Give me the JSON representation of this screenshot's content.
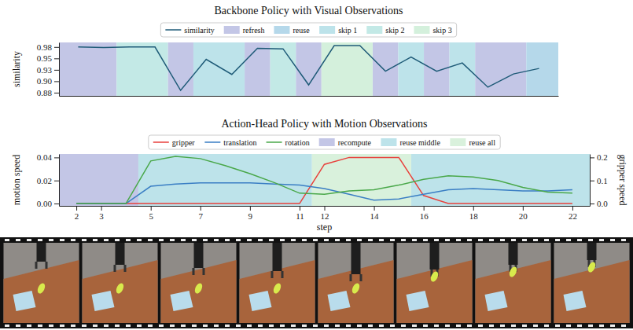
{
  "chart_data": [
    {
      "type": "line",
      "title": "Backbone Policy with Visual Observations",
      "y_label": "similarity",
      "tick_labels": "y",
      "legend": "top",
      "x": [
        0,
        1,
        2,
        3,
        4,
        5,
        6,
        7,
        8,
        9,
        10,
        11,
        12,
        13,
        14,
        15,
        16,
        17,
        18
      ],
      "xlim": [
        -0.75,
        18.75
      ],
      "ylim": [
        0.868,
        0.985
      ],
      "yticks": [
        {
          "value": 0.875,
          "label": "0.88"
        },
        {
          "value": 0.9,
          "label": "0.90"
        },
        {
          "value": 0.925,
          "label": "0.93"
        },
        0.95,
        {
          "value": 0.975,
          "label": "0.98"
        }
      ],
      "series": [
        {
          "name": "similarity",
          "color": "#1f5b78",
          "values": [
            0.975,
            0.974,
            0.975,
            0.975,
            0.88,
            0.948,
            0.915,
            0.972,
            0.971,
            0.892,
            0.978,
            0.978,
            0.922,
            0.953,
            0.922,
            0.94,
            0.887,
            0.916,
            0.928
          ]
        }
      ],
      "bands": [
        {
          "name": "refresh",
          "color": "#c3c6e6",
          "spans": [
            [
              -0.75,
              1.5
            ],
            [
              3.5,
              4.5
            ],
            [
              6.5,
              7.5
            ],
            [
              8.5,
              9.5
            ],
            [
              11.5,
              12.5
            ],
            [
              13.5,
              14.5
            ],
            [
              15.5,
              17.5
            ]
          ]
        },
        {
          "name": "reuse",
          "color": "#b5d8ea",
          "spans": [
            [
              17.5,
              18.75
            ]
          ]
        },
        {
          "name": "skip 1",
          "color": "#bde3ea",
          "spans": [
            [
              4.5,
              6.5
            ],
            [
              12.5,
              13.5
            ],
            [
              14.5,
              15.5
            ]
          ]
        },
        {
          "name": "skip 2",
          "color": "#c3e9e6",
          "spans": [
            [
              1.5,
              3.5
            ],
            [
              7.5,
              8.5
            ]
          ]
        },
        {
          "name": "skip 3",
          "color": "#d4f0dc",
          "spans": [
            [
              9.5,
              11.5
            ]
          ]
        }
      ]
    },
    {
      "type": "line",
      "title": "Action-Head Policy with Motion Observations",
      "x_label": "step",
      "y_label": "motion speed",
      "y2_label": "gripper speed",
      "legend": "top",
      "x": [
        2,
        3,
        4,
        5,
        6,
        7,
        8,
        9,
        10,
        11,
        12,
        13,
        14,
        15,
        16,
        17,
        18,
        19,
        20,
        21,
        22
      ],
      "xlim": [
        1.3,
        22.7
      ],
      "xticks": [
        2,
        3,
        5,
        7,
        9,
        11,
        12,
        14,
        16,
        18,
        20,
        22
      ],
      "ylim": [
        -0.002,
        0.043
      ],
      "yticks": [
        {
          "value": 0,
          "label": "0.00"
        },
        0.02,
        0.04
      ],
      "y2lim": [
        -0.01,
        0.215
      ],
      "y2ticks": [
        {
          "value": 0,
          "label": "0.0"
        },
        0.1,
        0.2
      ],
      "series": [
        {
          "name": "gripper",
          "color": "#e8413c",
          "axis": "y2",
          "values": [
            0,
            0,
            0,
            0,
            0,
            0,
            0,
            0,
            0,
            0,
            0.17,
            0.2,
            0.2,
            0.2,
            0.035,
            0,
            0,
            0,
            0,
            0,
            0
          ]
        },
        {
          "name": "translation",
          "color": "#3a7ec4",
          "values": [
            0,
            0,
            0,
            0.015,
            0.017,
            0.018,
            0.018,
            0.018,
            0.017,
            0.016,
            0.013,
            0.008,
            0.003,
            0.004,
            0.008,
            0.012,
            0.013,
            0.012,
            0.011,
            0.011,
            0.012
          ]
        },
        {
          "name": "rotation",
          "color": "#4aa84a",
          "values": [
            0,
            0,
            0,
            0.037,
            0.041,
            0.039,
            0.033,
            0.026,
            0.018,
            0.009,
            0.008,
            0.011,
            0.012,
            0.016,
            0.021,
            0.024,
            0.023,
            0.02,
            0.014,
            0.01,
            0.009
          ]
        }
      ],
      "bands": [
        {
          "name": "recompute",
          "color": "#c3c6e6",
          "spans": [
            [
              1.3,
              4.5
            ]
          ]
        },
        {
          "name": "reuse middle",
          "color": "#bde3ea",
          "spans": [
            [
              4.5,
              11.5
            ],
            [
              15.5,
              22.7
            ]
          ]
        },
        {
          "name": "reuse all",
          "color": "#d9f1dc",
          "spans": [
            [
              11.5,
              15.5
            ]
          ]
        }
      ]
    }
  ]
}
